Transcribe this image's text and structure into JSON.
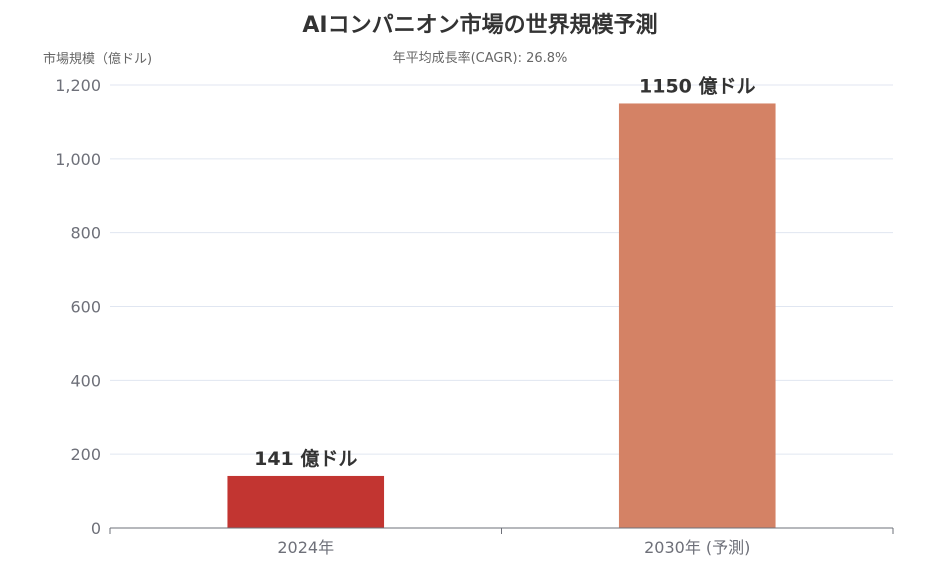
{
  "chart_data": {
    "type": "bar",
    "title": "AIコンパニオン市場の世界規模予測",
    "subtitle": "年平均成長率(CAGR): 26.8%",
    "ylabel": "市場規模（億ドル)",
    "xlabel": "",
    "categories": [
      "2024年",
      "2030年 (予測)"
    ],
    "values": [
      141,
      1150
    ],
    "data_labels": [
      "141 億ドル",
      "1150 億ドル"
    ],
    "bar_colors": [
      "#c23531",
      "#d48265"
    ],
    "ylim": [
      0,
      1200
    ],
    "yticks": [
      0,
      200,
      400,
      600,
      800,
      1000,
      1200
    ],
    "ytick_labels": [
      "0",
      "200",
      "400",
      "600",
      "800",
      "1,000",
      "1,200"
    ],
    "grid": true,
    "legend": "none"
  }
}
